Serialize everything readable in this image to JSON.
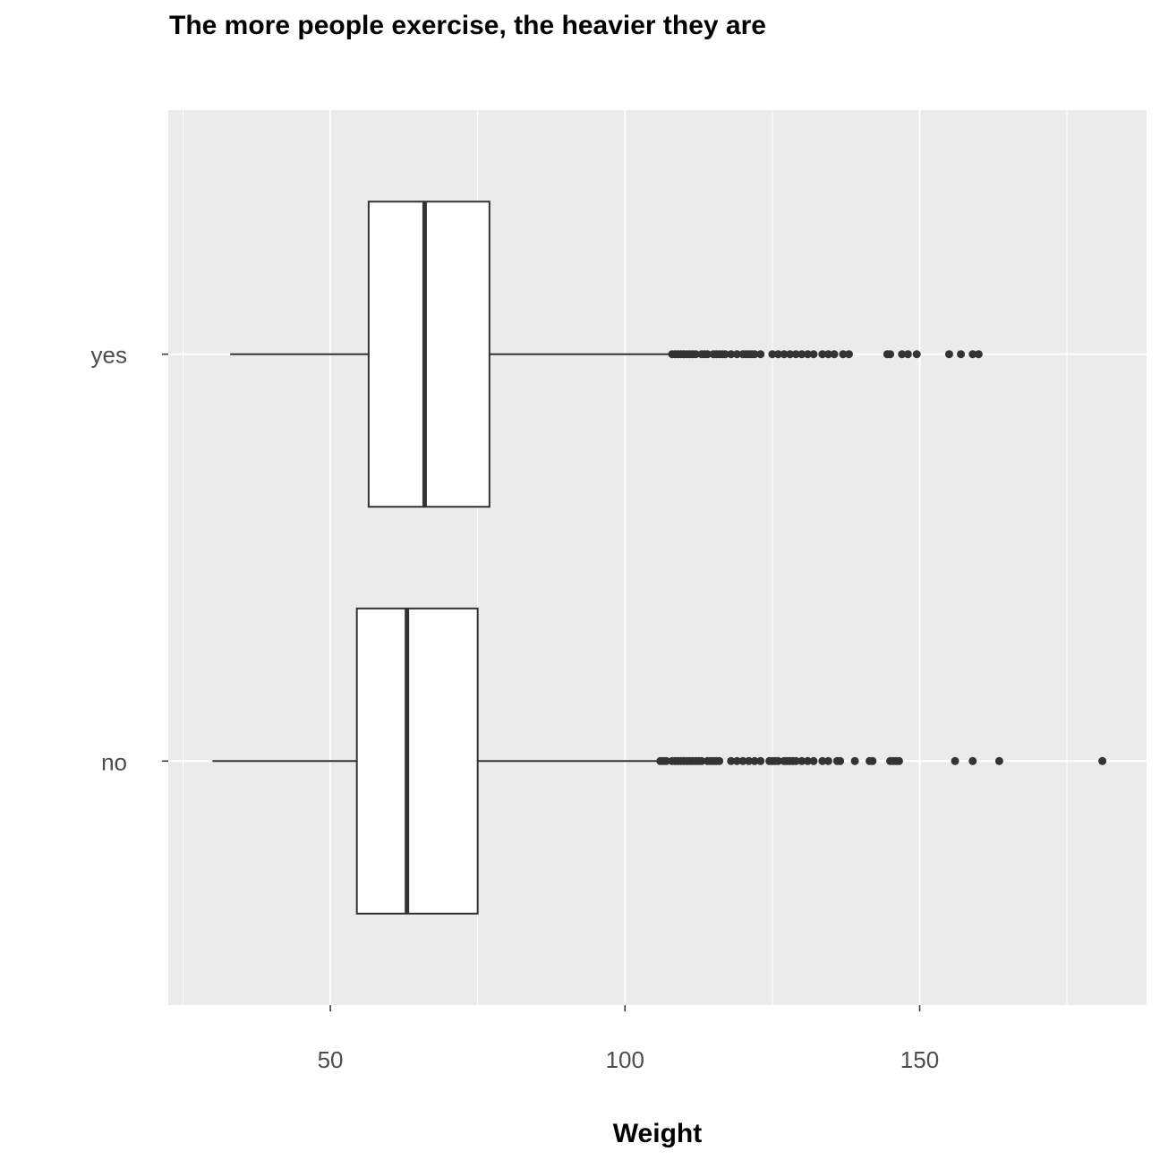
{
  "chart_data": {
    "type": "boxplot",
    "orientation": "horizontal",
    "title": "The more people exercise, the heavier they are",
    "xlabel": "Weight",
    "ylabel": "",
    "xlim": [
      22.5,
      188.5
    ],
    "x_ticks": [
      50,
      100,
      150
    ],
    "x_minor_ticks": [
      25,
      75,
      125,
      175
    ],
    "categories": [
      "no",
      "yes"
    ],
    "grid": true,
    "legend": "none",
    "colors": {
      "panel_background": "#ebebeb",
      "grid": "#ffffff",
      "box_fill": "#ffffff",
      "box_line": "#333333",
      "outlier": "#333333",
      "tick_label": "#4d4d4d"
    },
    "boxes": [
      {
        "category": "no",
        "whisker_low": 30,
        "q1": 54.5,
        "median": 63,
        "q3": 75,
        "whisker_high": 105.5,
        "outliers": [
          106,
          106.5,
          107,
          108,
          108.5,
          109,
          109.5,
          110,
          110.5,
          111,
          111.5,
          112,
          112.5,
          113,
          114,
          114.5,
          115,
          115.5,
          116,
          118,
          119,
          120,
          121,
          122,
          123,
          124.5,
          125,
          125.5,
          126,
          127,
          127.5,
          128,
          128.5,
          129,
          130,
          131,
          132,
          133.5,
          134.5,
          136,
          136.5,
          139,
          141.5,
          142,
          145,
          145.5,
          146,
          146.5,
          156,
          159,
          163.5,
          181
        ]
      },
      {
        "category": "yes",
        "whisker_low": 33,
        "q1": 56.5,
        "median": 66,
        "q3": 77,
        "whisker_high": 107.5,
        "outliers": [
          108,
          108.5,
          109,
          109.5,
          110,
          110.5,
          111,
          111.5,
          112,
          113,
          113.5,
          114,
          115,
          115.5,
          116,
          116.5,
          117,
          118,
          119,
          120,
          120.5,
          121,
          121.5,
          122,
          123,
          125,
          126,
          127,
          128,
          129,
          130,
          131,
          132,
          133.5,
          134.5,
          135.5,
          137,
          138,
          144.5,
          145,
          147,
          148,
          149.5,
          155,
          157,
          159,
          160
        ]
      }
    ]
  }
}
